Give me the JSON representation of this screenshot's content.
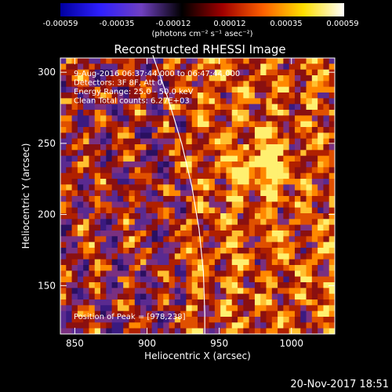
{
  "colorbar": {
    "ticks": [
      "-0.00059",
      "-0.00035",
      "-0.00012",
      "0.00012",
      "0.00035",
      "0.00059"
    ],
    "label": "(photons cm⁻² s⁻¹ asec⁻²)",
    "colors": [
      "#0000a0",
      "#3020ff",
      "#7040c0",
      "#000000",
      "#a00000",
      "#ff6000",
      "#ffe000",
      "#ffffff"
    ]
  },
  "chart_data": {
    "type": "heatmap",
    "title": "Reconstructed RHESSI Image",
    "xlabel": "Heliocentric X (arcsec)",
    "ylabel": "Heliocentric Y (arcsec)",
    "xlim": [
      840,
      1030
    ],
    "ylim": [
      116,
      310
    ],
    "xticks": [
      "850",
      "900",
      "950",
      "1000"
    ],
    "yticks": [
      "150",
      "200",
      "250",
      "300"
    ],
    "annotations": [
      "9-Aug-2016 06:37:44.000 to 06:47:44.000",
      "Detectors: 3F 8F, Att 0",
      "Energy Range: 25.0 - 50.0 keV",
      "Clean     Total counts: 6.27E+03"
    ],
    "peak_label": "Position of Peak = [978,238]",
    "peak": [
      978,
      238
    ],
    "limb_curve": [
      [
        904,
        312
      ],
      [
        915,
        280
      ],
      [
        924,
        250
      ],
      [
        931,
        220
      ],
      [
        936,
        190
      ],
      [
        939,
        160
      ],
      [
        940,
        130
      ],
      [
        940,
        116
      ]
    ]
  },
  "timestamp": "20-Nov-2017 18:51"
}
